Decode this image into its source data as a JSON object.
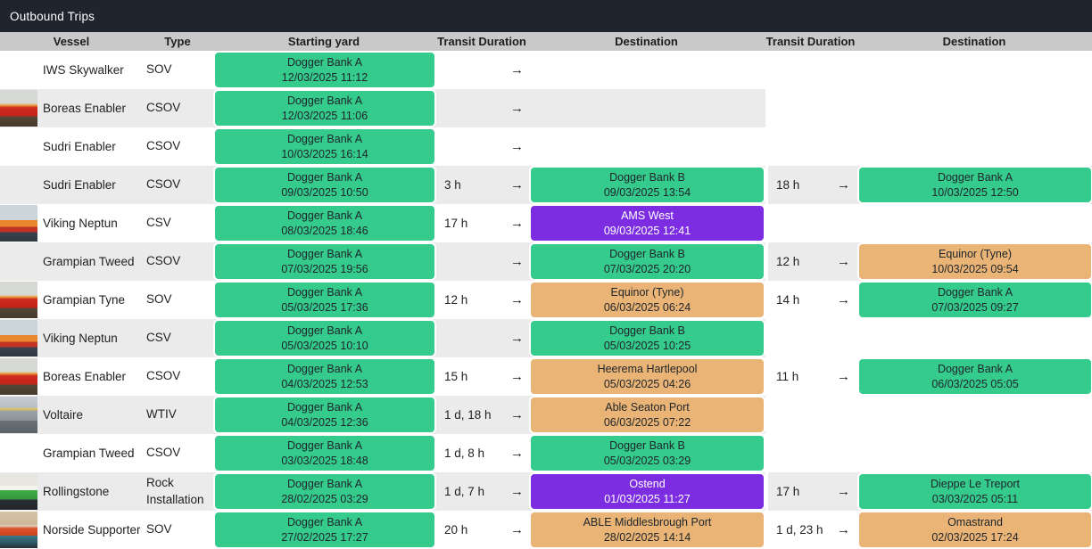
{
  "title": "Outbound Trips",
  "columns": [
    "Vessel",
    "Type",
    "Starting yard",
    "Transit Duration",
    "Destination",
    "Transit Duration",
    "Destination"
  ],
  "colors": {
    "green": "#34cb8d",
    "orange": "#eab476",
    "purple": "#7c2de2",
    "title_bar": "#20242e",
    "header_bg": "#c9c9c9",
    "row_stripe": "#ebebeb",
    "chip_text_dark": "#20262b",
    "chip_text_light": "#ffffff"
  },
  "rows": [
    {
      "vessel": "IWS Skywalker",
      "type": "SOV",
      "image": "no-image",
      "start": {
        "location": "Dogger Bank A",
        "datetime": "12/03/2025 11:12",
        "color": "green"
      },
      "leg1": {
        "duration": "",
        "dest": null
      },
      "leg2": null
    },
    {
      "vessel": "Boreas Enabler",
      "type": "CSOV",
      "image": "ship-red",
      "start": {
        "location": "Dogger Bank A",
        "datetime": "12/03/2025 11:06",
        "color": "green"
      },
      "leg1": {
        "duration": "",
        "dest": null
      },
      "leg2": null
    },
    {
      "vessel": "Sudri Enabler",
      "type": "CSOV",
      "image": "no-image",
      "start": {
        "location": "Dogger Bank A",
        "datetime": "10/03/2025 16:14",
        "color": "green"
      },
      "leg1": {
        "duration": "",
        "dest": null
      },
      "leg2": null
    },
    {
      "vessel": "Sudri Enabler",
      "type": "CSOV",
      "image": "no-image",
      "start": {
        "location": "Dogger Bank A",
        "datetime": "09/03/2025 10:50",
        "color": "green"
      },
      "leg1": {
        "duration": "3 h",
        "dest": {
          "location": "Dogger Bank B",
          "datetime": "09/03/2025 13:54",
          "color": "green"
        }
      },
      "leg2": {
        "duration": "18 h",
        "dest": {
          "location": "Dogger Bank A",
          "datetime": "10/03/2025 12:50",
          "color": "green"
        }
      }
    },
    {
      "vessel": "Viking Neptun",
      "type": "CSV",
      "image": "ship-orange",
      "start": {
        "location": "Dogger Bank A",
        "datetime": "08/03/2025 18:46",
        "color": "green"
      },
      "leg1": {
        "duration": "17 h",
        "dest": {
          "location": "AMS West",
          "datetime": "09/03/2025 12:41",
          "color": "purple"
        }
      },
      "leg2": null
    },
    {
      "vessel": "Grampian Tweed",
      "type": "CSOV",
      "image": "no-image",
      "start": {
        "location": "Dogger Bank A",
        "datetime": "07/03/2025 19:56",
        "color": "green"
      },
      "leg1": {
        "duration": "",
        "dest": {
          "location": "Dogger Bank B",
          "datetime": "07/03/2025 20:20",
          "color": "green"
        }
      },
      "leg2": {
        "duration": "12 h",
        "dest": {
          "location": "Equinor (Tyne)",
          "datetime": "10/03/2025 09:54",
          "color": "orange"
        }
      }
    },
    {
      "vessel": "Grampian Tyne",
      "type": "SOV",
      "image": "ship-red",
      "start": {
        "location": "Dogger Bank A",
        "datetime": "05/03/2025 17:36",
        "color": "green"
      },
      "leg1": {
        "duration": "12 h",
        "dest": {
          "location": "Equinor (Tyne)",
          "datetime": "06/03/2025 06:24",
          "color": "orange"
        }
      },
      "leg2": {
        "duration": "14 h",
        "dest": {
          "location": "Dogger Bank A",
          "datetime": "07/03/2025 09:27",
          "color": "green"
        }
      }
    },
    {
      "vessel": "Viking Neptun",
      "type": "CSV",
      "image": "ship-orange",
      "start": {
        "location": "Dogger Bank A",
        "datetime": "05/03/2025 10:10",
        "color": "green"
      },
      "leg1": {
        "duration": "",
        "dest": {
          "location": "Dogger Bank B",
          "datetime": "05/03/2025 10:25",
          "color": "green"
        }
      },
      "leg2": null
    },
    {
      "vessel": "Boreas Enabler",
      "type": "CSOV",
      "image": "ship-red",
      "start": {
        "location": "Dogger Bank A",
        "datetime": "04/03/2025 12:53",
        "color": "green"
      },
      "leg1": {
        "duration": "15 h",
        "dest": {
          "location": "Heerema Hartlepool",
          "datetime": "05/03/2025 04:26",
          "color": "orange"
        }
      },
      "leg2": {
        "duration": "11 h",
        "dest": {
          "location": "Dogger Bank A",
          "datetime": "06/03/2025 05:05",
          "color": "green"
        }
      }
    },
    {
      "vessel": "Voltaire",
      "type": "WTIV",
      "image": "ship-jackup",
      "start": {
        "location": "Dogger Bank A",
        "datetime": "04/03/2025 12:36",
        "color": "green"
      },
      "leg1": {
        "duration": "1 d, 18 h",
        "dest": {
          "location": "Able Seaton Port",
          "datetime": "06/03/2025 07:22",
          "color": "orange"
        }
      },
      "leg2": null
    },
    {
      "vessel": "Grampian Tweed",
      "type": "CSOV",
      "image": "no-image",
      "start": {
        "location": "Dogger Bank A",
        "datetime": "03/03/2025 18:48",
        "color": "green"
      },
      "leg1": {
        "duration": "1 d, 8 h",
        "dest": {
          "location": "Dogger Bank B",
          "datetime": "05/03/2025 03:29",
          "color": "green"
        }
      },
      "leg2": null
    },
    {
      "vessel": "Rollingstone",
      "type": "Rock Installation",
      "image": "ship-green",
      "start": {
        "location": "Dogger Bank A",
        "datetime": "28/02/2025 03:29",
        "color": "green"
      },
      "leg1": {
        "duration": "1 d, 7 h",
        "dest": {
          "location": "Ostend",
          "datetime": "01/03/2025 11:27",
          "color": "purple"
        }
      },
      "leg2": {
        "duration": "17 h",
        "dest": {
          "location": "Dieppe Le Treport",
          "datetime": "03/03/2025 05:11",
          "color": "green"
        }
      }
    },
    {
      "vessel": "Norside Supporter",
      "type": "SOV",
      "image": "ship-harbor",
      "start": {
        "location": "Dogger Bank A",
        "datetime": "27/02/2025 17:27",
        "color": "green"
      },
      "leg1": {
        "duration": "20 h",
        "dest": {
          "location": "ABLE Middlesbrough Port",
          "datetime": "28/02/2025 14:14",
          "color": "orange"
        }
      },
      "leg2": {
        "duration": "1 d, 23 h",
        "dest": {
          "location": "Omastrand",
          "datetime": "02/03/2025 17:24",
          "color": "orange"
        }
      }
    }
  ]
}
